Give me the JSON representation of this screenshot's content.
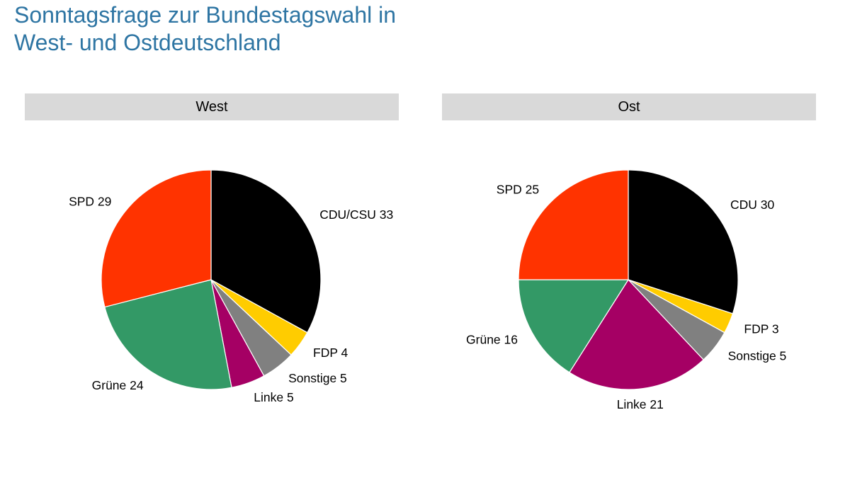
{
  "title": {
    "line1": "Sonntagsfrage zur Bundestagswahl in",
    "line2": "West- und Ostdeutschland"
  },
  "chart_data": [
    {
      "type": "pie",
      "panel": "West",
      "start": "12 o'clock",
      "direction": "clockwise",
      "slices": [
        {
          "name": "CDU/CSU",
          "value": 33,
          "label": "CDU/CSU 33",
          "color": "#000000"
        },
        {
          "name": "FDP",
          "value": 4,
          "label": "FDP 4",
          "color": "#ffcc00"
        },
        {
          "name": "Sonstige",
          "value": 5,
          "label": "Sonstige 5",
          "color": "#808080"
        },
        {
          "name": "Linke",
          "value": 5,
          "label": "Linke 5",
          "color": "#a50064"
        },
        {
          "name": "Grüne",
          "value": 24,
          "label": "Grüne 24",
          "color": "#339966"
        },
        {
          "name": "SPD",
          "value": 29,
          "label": "SPD 29",
          "color": "#ff3300"
        }
      ]
    },
    {
      "type": "pie",
      "panel": "Ost",
      "start": "12 o'clock",
      "direction": "clockwise",
      "slices": [
        {
          "name": "CDU",
          "value": 30,
          "label": "CDU 30",
          "color": "#000000"
        },
        {
          "name": "FDP",
          "value": 3,
          "label": "FDP 3",
          "color": "#ffcc00"
        },
        {
          "name": "Sonstige",
          "value": 5,
          "label": "Sonstige 5",
          "color": "#808080"
        },
        {
          "name": "Linke",
          "value": 21,
          "label": "Linke 21",
          "color": "#a50064"
        },
        {
          "name": "Grüne",
          "value": 16,
          "label": "Grüne 16",
          "color": "#339966"
        },
        {
          "name": "SPD",
          "value": 25,
          "label": "SPD 25",
          "color": "#ff3300"
        }
      ]
    }
  ]
}
